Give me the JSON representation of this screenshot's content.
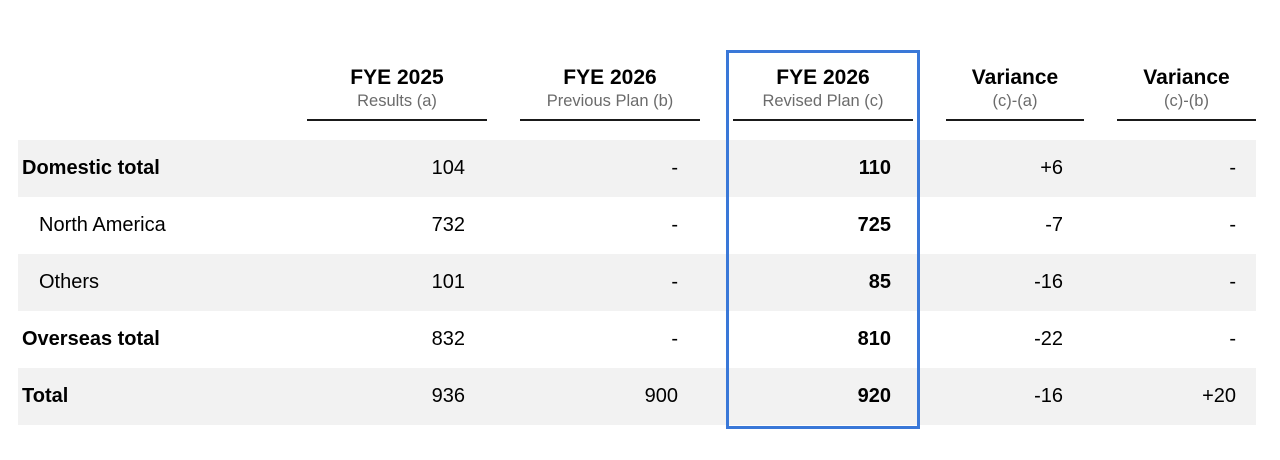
{
  "columns": [
    {
      "title": "FYE 2025",
      "subtitle": "Results (a)"
    },
    {
      "title": "FYE 2026",
      "subtitle": "Previous Plan (b)"
    },
    {
      "title": "FYE 2026",
      "subtitle": "Revised Plan (c)"
    },
    {
      "title": "Variance",
      "subtitle": "(c)-(a)"
    },
    {
      "title": "Variance",
      "subtitle": "(c)-(b)"
    }
  ],
  "rows": [
    {
      "label": "Domestic total",
      "values": [
        "104",
        "-",
        "110",
        "+6",
        "-"
      ]
    },
    {
      "label": "North America",
      "values": [
        "732",
        "-",
        "725",
        "-7",
        "-"
      ]
    },
    {
      "label": "Others",
      "values": [
        "101",
        "-",
        "85",
        "-16",
        "-"
      ]
    },
    {
      "label": "Overseas total",
      "values": [
        "832",
        "-",
        "810",
        "-22",
        "-"
      ]
    },
    {
      "label": "Total",
      "values": [
        "936",
        "900",
        "920",
        "-16",
        "+20"
      ]
    }
  ],
  "highlight_color": "#3a78d8",
  "row_shade_color": "#f2f2f2"
}
